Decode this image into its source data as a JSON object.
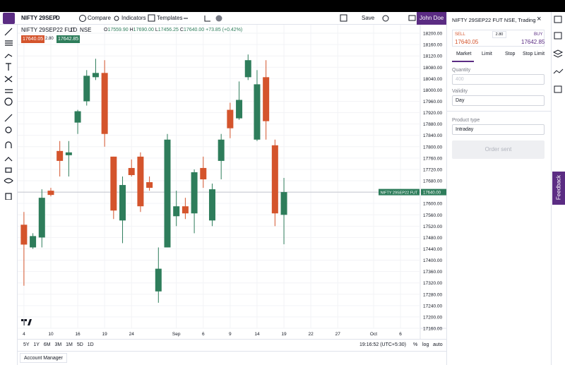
{
  "toolbar": {
    "symbol": "NIFTY 29SEP",
    "interval": "D",
    "compare": "Compare",
    "indicators": "Indicators",
    "templates": "Templates",
    "save": "Save",
    "user": "John Doe"
  },
  "legend": {
    "symbol": "NIFTY 29SEP22 FUT",
    "interval": "1D",
    "exchange": "NSE",
    "ohlc": [
      {
        "key": "O",
        "value": "17559.90"
      },
      {
        "key": "H",
        "value": "17690.00"
      },
      {
        "key": "L",
        "value": "17456.25"
      },
      {
        "key": "C",
        "value": "17640.00"
      }
    ],
    "change": "+73.85 (+0.42%)",
    "sell_price": "17640.05",
    "spread": "2.80",
    "buy_price": "17642.85"
  },
  "chart_data": {
    "type": "candlestick",
    "x": [
      0,
      1,
      2,
      3,
      4,
      5,
      6,
      7,
      8,
      9,
      10,
      11,
      12,
      13,
      14,
      15,
      16,
      17,
      18,
      19,
      20,
      21,
      22,
      23,
      24,
      25,
      26,
      27,
      28,
      29
    ],
    "open": [
      17525,
      17445,
      17480,
      17645,
      17785,
      17770,
      17885,
      17960,
      18045,
      18060,
      17765,
      17540,
      17725,
      17765,
      17675,
      17290,
      17445,
      17555,
      17590,
      17565,
      17725,
      17540,
      17750,
      17930,
      17900,
      18045,
      17825,
      18045,
      17805,
      17559.9
    ],
    "high": [
      17570,
      17495,
      17650,
      17655,
      17820,
      17820,
      17930,
      18070,
      18110,
      18105,
      17765,
      17695,
      17755,
      17780,
      17695,
      17445,
      17845,
      17645,
      17620,
      17720,
      17765,
      17670,
      17845,
      17955,
      18030,
      18125,
      18070,
      18105,
      17825,
      17690
    ],
    "low": [
      17310,
      17440,
      17445,
      17625,
      17695,
      17695,
      17845,
      17945,
      18035,
      17800,
      17545,
      17460,
      17695,
      17570,
      17645,
      17250,
      17445,
      17520,
      17545,
      17495,
      17655,
      17520,
      17685,
      17830,
      17895,
      18035,
      17820,
      17825,
      17520,
      17456.25
    ],
    "close": [
      17455,
      17485,
      17620,
      17630,
      17750,
      17780,
      17925,
      18050,
      18060,
      17845,
      17575,
      17665,
      17700,
      17590,
      17655,
      17370,
      17825,
      17590,
      17565,
      17710,
      17685,
      17650,
      17825,
      17865,
      17965,
      18105,
      18020,
      17890,
      17565,
      17640
    ],
    "xlim": [
      -0.7,
      44.2
    ],
    "ylim": [
      17160,
      18230
    ],
    "xticks": [
      {
        "value": 0,
        "label": "4"
      },
      {
        "value": 3,
        "label": "10"
      },
      {
        "value": 6,
        "label": "16"
      },
      {
        "value": 9,
        "label": "19"
      },
      {
        "value": 12,
        "label": "24"
      },
      {
        "value": 17,
        "label": "Sep"
      },
      {
        "value": 20,
        "label": "6"
      },
      {
        "value": 23,
        "label": "9"
      },
      {
        "value": 26,
        "label": "14"
      },
      {
        "value": 29,
        "label": "19"
      },
      {
        "value": 32,
        "label": "22"
      },
      {
        "value": 35,
        "label": "27"
      },
      {
        "value": 39,
        "label": "Oct"
      },
      {
        "value": 42,
        "label": "6"
      }
    ],
    "yticks": [
      {
        "value": 18200,
        "label": "18200.00"
      },
      {
        "value": 18160,
        "label": "18160.00"
      },
      {
        "value": 18120,
        "label": "18120.00"
      },
      {
        "value": 18080,
        "label": "18080.00"
      },
      {
        "value": 18040,
        "label": "18040.00"
      },
      {
        "value": 18000,
        "label": "18000.00"
      },
      {
        "value": 17960,
        "label": "17960.00"
      },
      {
        "value": 17920,
        "label": "17920.00"
      },
      {
        "value": 17880,
        "label": "17880.00"
      },
      {
        "value": 17840,
        "label": "17840.00"
      },
      {
        "value": 17800,
        "label": "17800.00"
      },
      {
        "value": 17760,
        "label": "17760.00"
      },
      {
        "value": 17720,
        "label": "17720.00"
      },
      {
        "value": 17680,
        "label": "17680.00"
      },
      {
        "value": 17640,
        "label": "17640.00"
      },
      {
        "value": 17600,
        "label": "17600.00"
      },
      {
        "value": 17560,
        "label": "17560.00"
      },
      {
        "value": 17520,
        "label": "17520.00"
      },
      {
        "value": 17480,
        "label": "17480.00"
      },
      {
        "value": 17440,
        "label": "17440.00"
      },
      {
        "value": 17400,
        "label": "17400.00"
      },
      {
        "value": 17360,
        "label": "17360.00"
      },
      {
        "value": 17320,
        "label": "17320.00"
      },
      {
        "value": 17280,
        "label": "17280.00"
      },
      {
        "value": 17240,
        "label": "17240.00"
      },
      {
        "value": 17200,
        "label": "17200.00"
      },
      {
        "value": 17160,
        "label": "17160.00"
      }
    ],
    "up_color": "#2e7d5b",
    "down_color": "#d4542c",
    "grid": true,
    "last_price": {
      "name": "NIFTY 29SEP22 FUT",
      "value": 17640,
      "label": "17640.00"
    }
  },
  "bottom_bar": {
    "ranges": [
      "5Y",
      "1Y",
      "6M",
      "3M",
      "1M",
      "5D",
      "1D"
    ],
    "time": "19:16:52 (UTC+5:30)",
    "percent": "%",
    "log": "log",
    "auto": "auto"
  },
  "account_manager": "Account Manager",
  "order_panel": {
    "title": "NIFTY 29SEP22 FUT NSE, Trading",
    "sell_label": "SELL",
    "sell_price": "17640.05",
    "spread": "2.80",
    "buy_label": "BUY",
    "buy_price": "17642.85",
    "tabs": [
      "Market",
      "Limit",
      "Stop",
      "Stop Limit"
    ],
    "quantity_label": "Quantity",
    "quantity": "400",
    "validity_label": "Validity",
    "validity": "Day",
    "product_label": "Product type",
    "product": "Intraday",
    "submit": "Order sent"
  },
  "feedback": "Feedback"
}
